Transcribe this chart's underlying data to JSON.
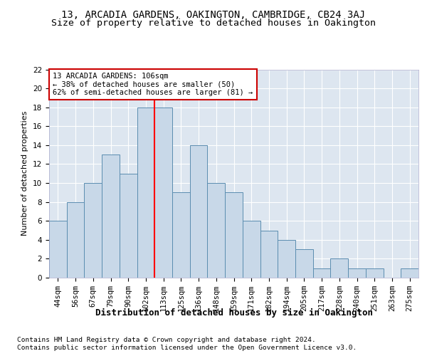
{
  "title1": "13, ARCADIA GARDENS, OAKINGTON, CAMBRIDGE, CB24 3AJ",
  "title2": "Size of property relative to detached houses in Oakington",
  "xlabel": "Distribution of detached houses by size in Oakington",
  "ylabel": "Number of detached properties",
  "footer1": "Contains HM Land Registry data © Crown copyright and database right 2024.",
  "footer2": "Contains public sector information licensed under the Open Government Licence v3.0.",
  "bin_labels": [
    "44sqm",
    "56sqm",
    "67sqm",
    "79sqm",
    "90sqm",
    "102sqm",
    "113sqm",
    "125sqm",
    "136sqm",
    "148sqm",
    "159sqm",
    "171sqm",
    "182sqm",
    "194sqm",
    "205sqm",
    "217sqm",
    "228sqm",
    "240sqm",
    "251sqm",
    "263sqm",
    "275sqm"
  ],
  "bar_heights": [
    6,
    8,
    10,
    13,
    11,
    18,
    18,
    9,
    14,
    10,
    9,
    6,
    5,
    4,
    3,
    1,
    2,
    1,
    1,
    0,
    1
  ],
  "bar_color": "#c8d8e8",
  "bar_edge_color": "#5b8db0",
  "bar_linewidth": 0.7,
  "red_line_x": 5.5,
  "annotation_text": "13 ARCADIA GARDENS: 106sqm\n← 38% of detached houses are smaller (50)\n62% of semi-detached houses are larger (81) →",
  "annotation_box_color": "#ffffff",
  "annotation_box_edge": "#cc0000",
  "ylim": [
    0,
    22
  ],
  "yticks": [
    0,
    2,
    4,
    6,
    8,
    10,
    12,
    14,
    16,
    18,
    20,
    22
  ],
  "bg_color": "#dde6f0",
  "grid_color": "#ffffff",
  "title1_fontsize": 10,
  "title2_fontsize": 9.5,
  "xlabel_fontsize": 9,
  "ylabel_fontsize": 8,
  "annot_fontsize": 7.5,
  "tick_fontsize": 7.5,
  "footer_fontsize": 6.8
}
